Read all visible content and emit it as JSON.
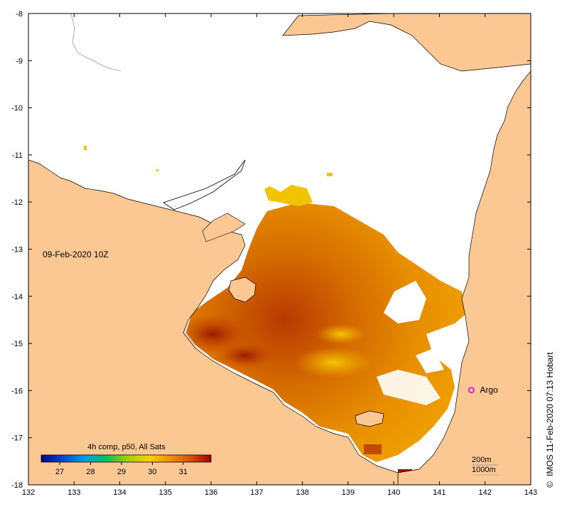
{
  "map": {
    "date_label": "09-Feb-2020 10Z",
    "colorbar_title": "4h comp, p50, All Sats",
    "colorbar_ticks": [
      "27",
      "28",
      "29",
      "30",
      "31"
    ],
    "colorbar_range": [
      26.4,
      31.9
    ],
    "argo_label": "Argo",
    "argo_position": {
      "lon": 141.7,
      "lat": -15.99
    },
    "scale_label_1": "200m",
    "scale_label_2": "1000m",
    "credit": "IMOS 11-Feb-2020 07:13 Hobart",
    "copyright_symbol": "©",
    "lon_range": [
      132,
      143
    ],
    "lat_range": [
      -18,
      -8
    ],
    "lon_ticks": [
      "132",
      "133",
      "134",
      "135",
      "136",
      "137",
      "138",
      "139",
      "140",
      "141",
      "142",
      "143"
    ],
    "lat_ticks": [
      "-8",
      "-9",
      "-10",
      "-11",
      "-12",
      "-13",
      "-14",
      "-15",
      "-16",
      "-17",
      "-18"
    ],
    "colors": {
      "land": "#fbc894",
      "no_data": "#ffffff",
      "argo_marker": "#e020e0",
      "colormap": [
        "#00008b",
        "#0050d0",
        "#00a0e0",
        "#00c060",
        "#b0d000",
        "#ffd000",
        "#f09000",
        "#d85000",
        "#a00000"
      ]
    }
  }
}
